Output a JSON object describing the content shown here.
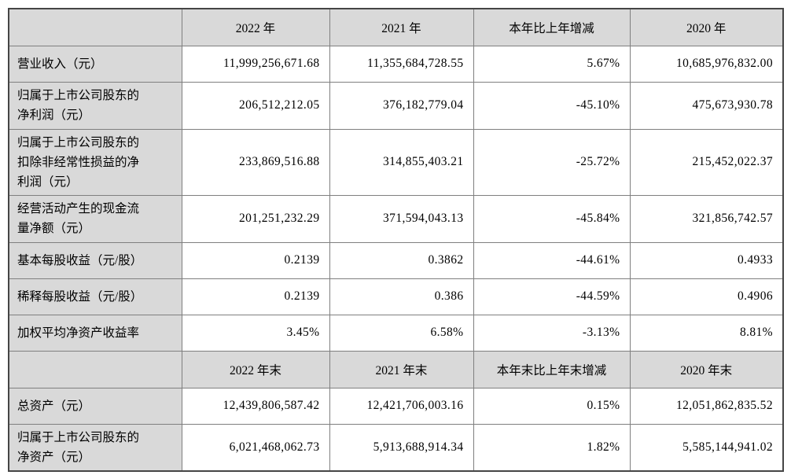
{
  "colors": {
    "header_bg": "#d9d9d9",
    "cell_bg": "#ffffff",
    "border": "#7f7f7f",
    "text": "#000000"
  },
  "table": {
    "sections": [
      {
        "header": {
          "label": "",
          "cols": [
            "2022 年",
            "2021 年",
            "本年比上年增减",
            "2020 年"
          ]
        },
        "rows": [
          {
            "label": "营业收入（元）",
            "values": [
              "11,999,256,671.68",
              "11,355,684,728.55",
              "5.67%",
              "10,685,976,832.00"
            ]
          },
          {
            "label": "归属于上市公司股东的\n净利润（元）",
            "values": [
              "206,512,212.05",
              "376,182,779.04",
              "-45.10%",
              "475,673,930.78"
            ]
          },
          {
            "label": "归属于上市公司股东的\n扣除非经常性损益的净\n利润（元）",
            "values": [
              "233,869,516.88",
              "314,855,403.21",
              "-25.72%",
              "215,452,022.37"
            ]
          },
          {
            "label": "经营活动产生的现金流\n量净额（元）",
            "values": [
              "201,251,232.29",
              "371,594,043.13",
              "-45.84%",
              "321,856,742.57"
            ]
          },
          {
            "label": "基本每股收益（元/股）",
            "values": [
              "0.2139",
              "0.3862",
              "-44.61%",
              "0.4933"
            ]
          },
          {
            "label": "稀释每股收益（元/股）",
            "values": [
              "0.2139",
              "0.386",
              "-44.59%",
              "0.4906"
            ]
          },
          {
            "label": "加权平均净资产收益率",
            "values": [
              "3.45%",
              "6.58%",
              "-3.13%",
              "8.81%"
            ]
          }
        ]
      },
      {
        "header": {
          "label": "",
          "cols": [
            "2022 年末",
            "2021 年末",
            "本年末比上年末增减",
            "2020 年末"
          ]
        },
        "rows": [
          {
            "label": "总资产（元）",
            "values": [
              "12,439,806,587.42",
              "12,421,706,003.16",
              "0.15%",
              "12,051,862,835.52"
            ]
          },
          {
            "label": "归属于上市公司股东的\n净资产（元）",
            "values": [
              "6,021,468,062.73",
              "5,913,688,914.34",
              "1.82%",
              "5,585,144,941.02"
            ]
          }
        ]
      }
    ]
  }
}
